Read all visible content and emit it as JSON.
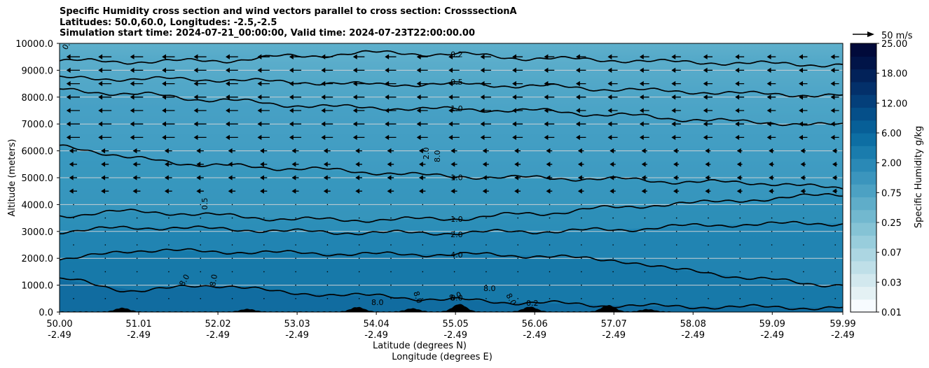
{
  "chart_data": {
    "type": "contour",
    "title": [
      "Specific Humidity cross section and wind vectors parallel to cross section: CrosssectionA",
      "Latitudes: 50.0,60.0, Longitudes: -2.5,-2.5",
      "Simulation start time: 2024-07-21_00:00:00, Valid time: 2024-07-23T22:00:00.00"
    ],
    "xlabel": [
      "Latitude (degrees N)",
      "Longitude (degrees E)"
    ],
    "ylabel": "Altitude (meters)",
    "ylim": [
      0,
      10000
    ],
    "xlim": [
      50.0,
      59.99
    ],
    "yticks": [
      "0.0",
      "1000.0",
      "2000.0",
      "3000.0",
      "4000.0",
      "5000.0",
      "6000.0",
      "7000.0",
      "8000.0",
      "9000.0",
      "10000.0"
    ],
    "xticks": [
      {
        "lat": "50.00",
        "lon": "-2.49"
      },
      {
        "lat": "51.01",
        "lon": "-2.49"
      },
      {
        "lat": "52.02",
        "lon": "-2.49"
      },
      {
        "lat": "53.03",
        "lon": "-2.49"
      },
      {
        "lat": "54.04",
        "lon": "-2.49"
      },
      {
        "lat": "55.05",
        "lon": "-2.49"
      },
      {
        "lat": "56.06",
        "lon": "-2.49"
      },
      {
        "lat": "57.07",
        "lon": "-2.49"
      },
      {
        "lat": "58.08",
        "lon": "-2.49"
      },
      {
        "lat": "59.09",
        "lon": "-2.49"
      },
      {
        "lat": "59.99",
        "lon": "-2.49"
      }
    ],
    "colorbar": {
      "label": "Specific Humidity g/kg",
      "levels": [
        "0.01",
        "0.03",
        "0.07",
        "0.25",
        "0.75",
        "2.00",
        "6.00",
        "12.00",
        "18.00",
        "25.00"
      ],
      "level_values": [
        0.01,
        0.02,
        0.03,
        0.05,
        0.07,
        0.1,
        0.25,
        0.5,
        0.75,
        1.0,
        2.0,
        4.0,
        6.0,
        8.0,
        12.0,
        15.0,
        18.0,
        22.0,
        25.0
      ],
      "colors": [
        "#f7fbff",
        "#e4f1f4",
        "#d2e8ee",
        "#bfdfe8",
        "#acd6e2",
        "#98cddc",
        "#85c3d5",
        "#72b8cf",
        "#5fadc9",
        "#4ca1c3",
        "#3b95bd",
        "#2a89b6",
        "#1a7cad",
        "#0d6ea3",
        "#075f97",
        "#054f89",
        "#043f7a",
        "#03306a",
        "#022259",
        "#011448",
        "#010a3a"
      ]
    },
    "quiver_key": "50 m/s",
    "contour_lines": [
      {
        "level": 0.2,
        "label": "0.2",
        "y": [
          9350,
          9320,
          9360,
          9520,
          9650,
          9600,
          9450,
          9380,
          9300,
          9250,
          9200
        ]
      },
      {
        "level": 0.5,
        "label": "0.5",
        "y": [
          8700,
          8680,
          8650,
          8560,
          8470,
          8480,
          8420,
          8300,
          8200,
          8120,
          8050
        ]
      },
      {
        "level": 1.0,
        "label": "1.0",
        "y": [
          8280,
          8100,
          7900,
          7700,
          7600,
          7550,
          7500,
          7350,
          7180,
          7050,
          6950
        ]
      },
      {
        "level": 1.0,
        "label": "1.0",
        "y": [
          6200,
          5700,
          5450,
          5350,
          5200,
          5050,
          5000,
          4950,
          4850,
          4800,
          4600
        ]
      },
      {
        "level": 1.0,
        "label": "1.0",
        "y": [
          3600,
          3750,
          3600,
          3450,
          3430,
          3480,
          3650,
          3870,
          4050,
          4200,
          4400
        ]
      },
      {
        "level": 2.0,
        "label": "2.0",
        "y": [
          3000,
          3150,
          3100,
          3000,
          2950,
          2950,
          3000,
          3050,
          3200,
          3280,
          3300
        ]
      },
      {
        "level": 4.0,
        "label": "4.0",
        "y": [
          1950,
          2300,
          2250,
          2200,
          2150,
          2150,
          2100,
          1950,
          1550,
          1200,
          1000
        ]
      },
      {
        "level": 8.0,
        "label": "8.0",
        "y": [
          1200,
          800,
          1000,
          700,
          600,
          450,
          350,
          250,
          200,
          180,
          150
        ]
      }
    ],
    "extra_labels": [
      "0.5",
      "2.0",
      "8.0",
      "8.0",
      "8.0",
      "8.0",
      "8.0",
      "8.0",
      "8.0",
      "8.0",
      "0.2",
      "0.2"
    ],
    "terrain_peaks_m": [
      {
        "lat": 50.8,
        "h": 140
      },
      {
        "lat": 52.4,
        "h": 100
      },
      {
        "lat": 53.8,
        "h": 170
      },
      {
        "lat": 54.5,
        "h": 120
      },
      {
        "lat": 55.1,
        "h": 280
      },
      {
        "lat": 56.0,
        "h": 180
      },
      {
        "lat": 57.0,
        "h": 240
      },
      {
        "lat": 57.5,
        "h": 90
      }
    ]
  }
}
